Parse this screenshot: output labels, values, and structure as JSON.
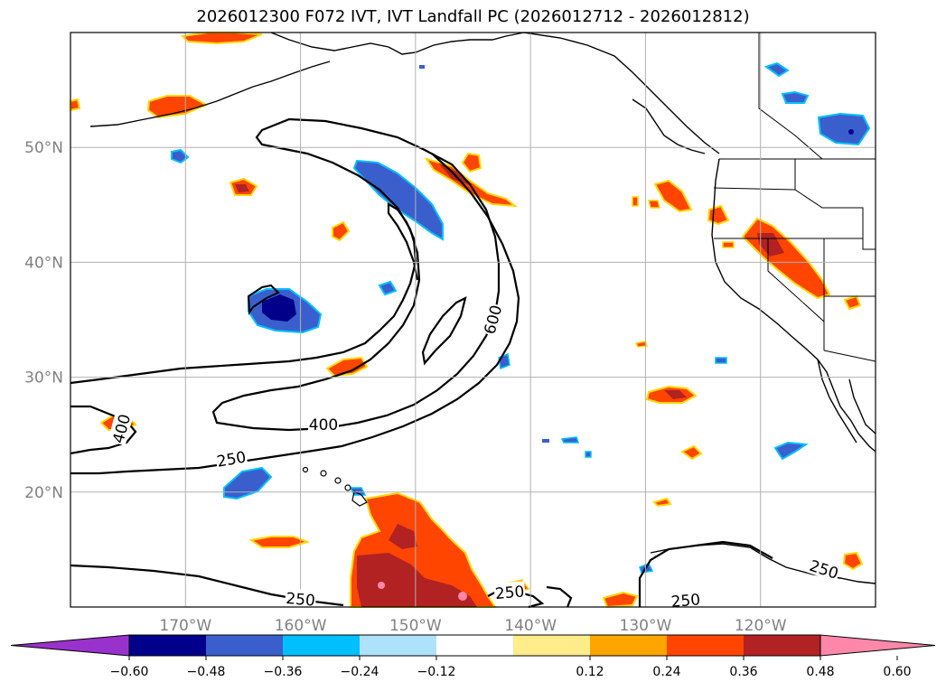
{
  "title": "2026012300 F072 IVT, IVT Landfall PC (2026012712 - 2026012812)",
  "map": {
    "lon_range": [
      -180,
      -110
    ],
    "lat_range": [
      10,
      60
    ],
    "lon_ticks": [
      {
        "lon": -170,
        "label": "170°W"
      },
      {
        "lon": -160,
        "label": "160°W"
      },
      {
        "lon": -150,
        "label": "150°W"
      },
      {
        "lon": -140,
        "label": "140°W"
      },
      {
        "lon": -130,
        "label": "130°W"
      },
      {
        "lon": -120,
        "label": "120°W"
      }
    ],
    "lat_ticks": [
      {
        "lat": 50,
        "label": "50°N"
      },
      {
        "lat": 40,
        "label": "40°N"
      },
      {
        "lat": 30,
        "label": "30°N"
      },
      {
        "lat": 20,
        "label": "20°N"
      }
    ],
    "grid": true,
    "contour_labels": [
      {
        "text": "600",
        "lon": -143.2,
        "lat": 35.0,
        "rot": -75
      },
      {
        "text": "400",
        "lon": -158.0,
        "lat": 25.8,
        "rot": 0
      },
      {
        "text": "400",
        "lon": -175.5,
        "lat": 25.5,
        "rot": -75
      },
      {
        "text": "250",
        "lon": -166.0,
        "lat": 22.8,
        "rot": -10
      },
      {
        "text": "250",
        "lon": -160.0,
        "lat": 10.6,
        "rot": 5
      },
      {
        "text": "250",
        "lon": -141.8,
        "lat": 11.2,
        "rot": -5
      },
      {
        "text": "250",
        "lon": -126.5,
        "lat": 10.5,
        "rot": -5
      },
      {
        "text": "250",
        "lon": -114.5,
        "lat": 13.2,
        "rot": 18
      }
    ]
  },
  "colorbar": {
    "colors": [
      "#9932cc",
      "#00008b",
      "#3a5fcd",
      "#00bfff",
      "#aee2fa",
      "#ffffff",
      "#ffec8b",
      "#ffa500",
      "#ff4500",
      "#b22222",
      "#ff88aa"
    ],
    "tick_labels": [
      "−0.60",
      "−0.48",
      "−0.36",
      "−0.24",
      "−0.12",
      "0.12",
      "0.24",
      "0.36",
      "0.48",
      "0.60"
    ],
    "extend": "both"
  }
}
